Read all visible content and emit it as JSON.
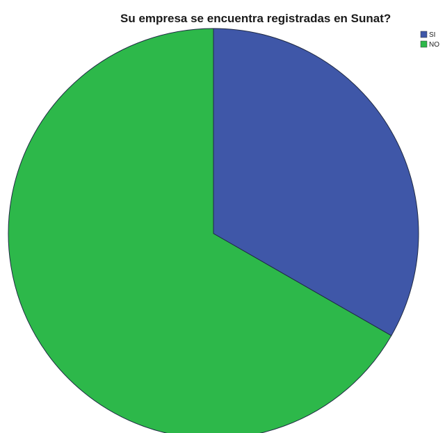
{
  "chart_data": {
    "type": "pie",
    "title": "Su empresa se encuentra registradas en Sunat?",
    "categories": [
      "SI",
      "NO"
    ],
    "values": [
      33.3,
      66.7
    ],
    "colors": [
      "#3f57a8",
      "#2db84a"
    ],
    "start_angle_deg": 0,
    "direction": "clockwise",
    "legend_position": "top-right"
  }
}
